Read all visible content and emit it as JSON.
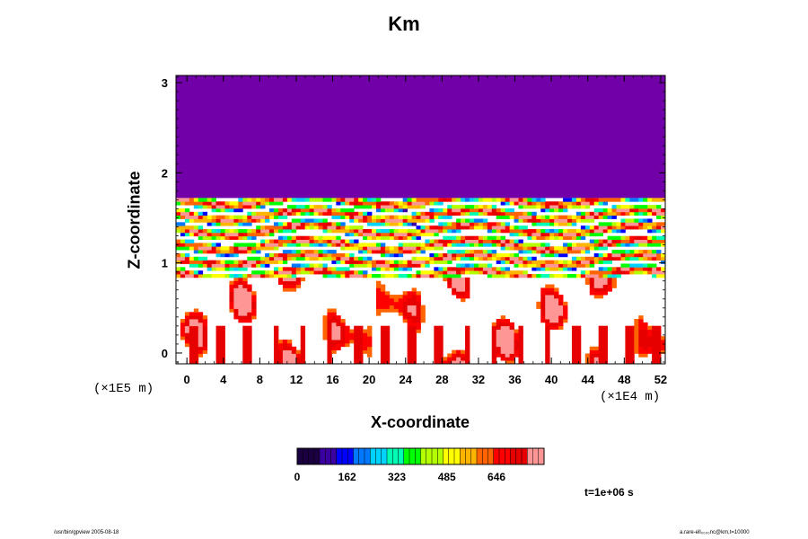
{
  "chart_data": {
    "type": "heatmap",
    "title": "Km",
    "xlabel": "X-coordinate",
    "ylabel": "Z-coordinate",
    "x_unit": "(×1E4 m)",
    "y_unit": "(×1E5 m)",
    "x_ticks": [
      "0",
      "4",
      "8",
      "12",
      "16",
      "20",
      "24",
      "28",
      "32",
      "36",
      "40",
      "44",
      "48",
      "52"
    ],
    "y_ticks": [
      "0",
      "1",
      "2",
      "3"
    ],
    "xlim": [
      -1.2,
      52.5
    ],
    "ylim": [
      -0.12,
      3.08
    ],
    "colorbar": {
      "min": 0,
      "max": 800,
      "tick_labels": [
        "0",
        "162",
        "323",
        "485",
        "646"
      ],
      "colors": [
        "#1a0040",
        "#3a00a0",
        "#0000ff",
        "#0078ff",
        "#00d2ff",
        "#00ffb4",
        "#00ff00",
        "#b4ff00",
        "#ffff00",
        "#ffb400",
        "#ff6400",
        "#ff0000",
        "#e60000",
        "#ff9696"
      ]
    },
    "regions": [
      {
        "zmin": 1.72,
        "zmax": 3.08,
        "value": 30,
        "color": "#7200a8"
      }
    ],
    "time_label": "t=1e+06 s"
  },
  "footer": {
    "left": "/usr/bin/gpview 2005-08-18",
    "right": "a.rare-ell₀₀₀₀nc@km,t=10000"
  }
}
